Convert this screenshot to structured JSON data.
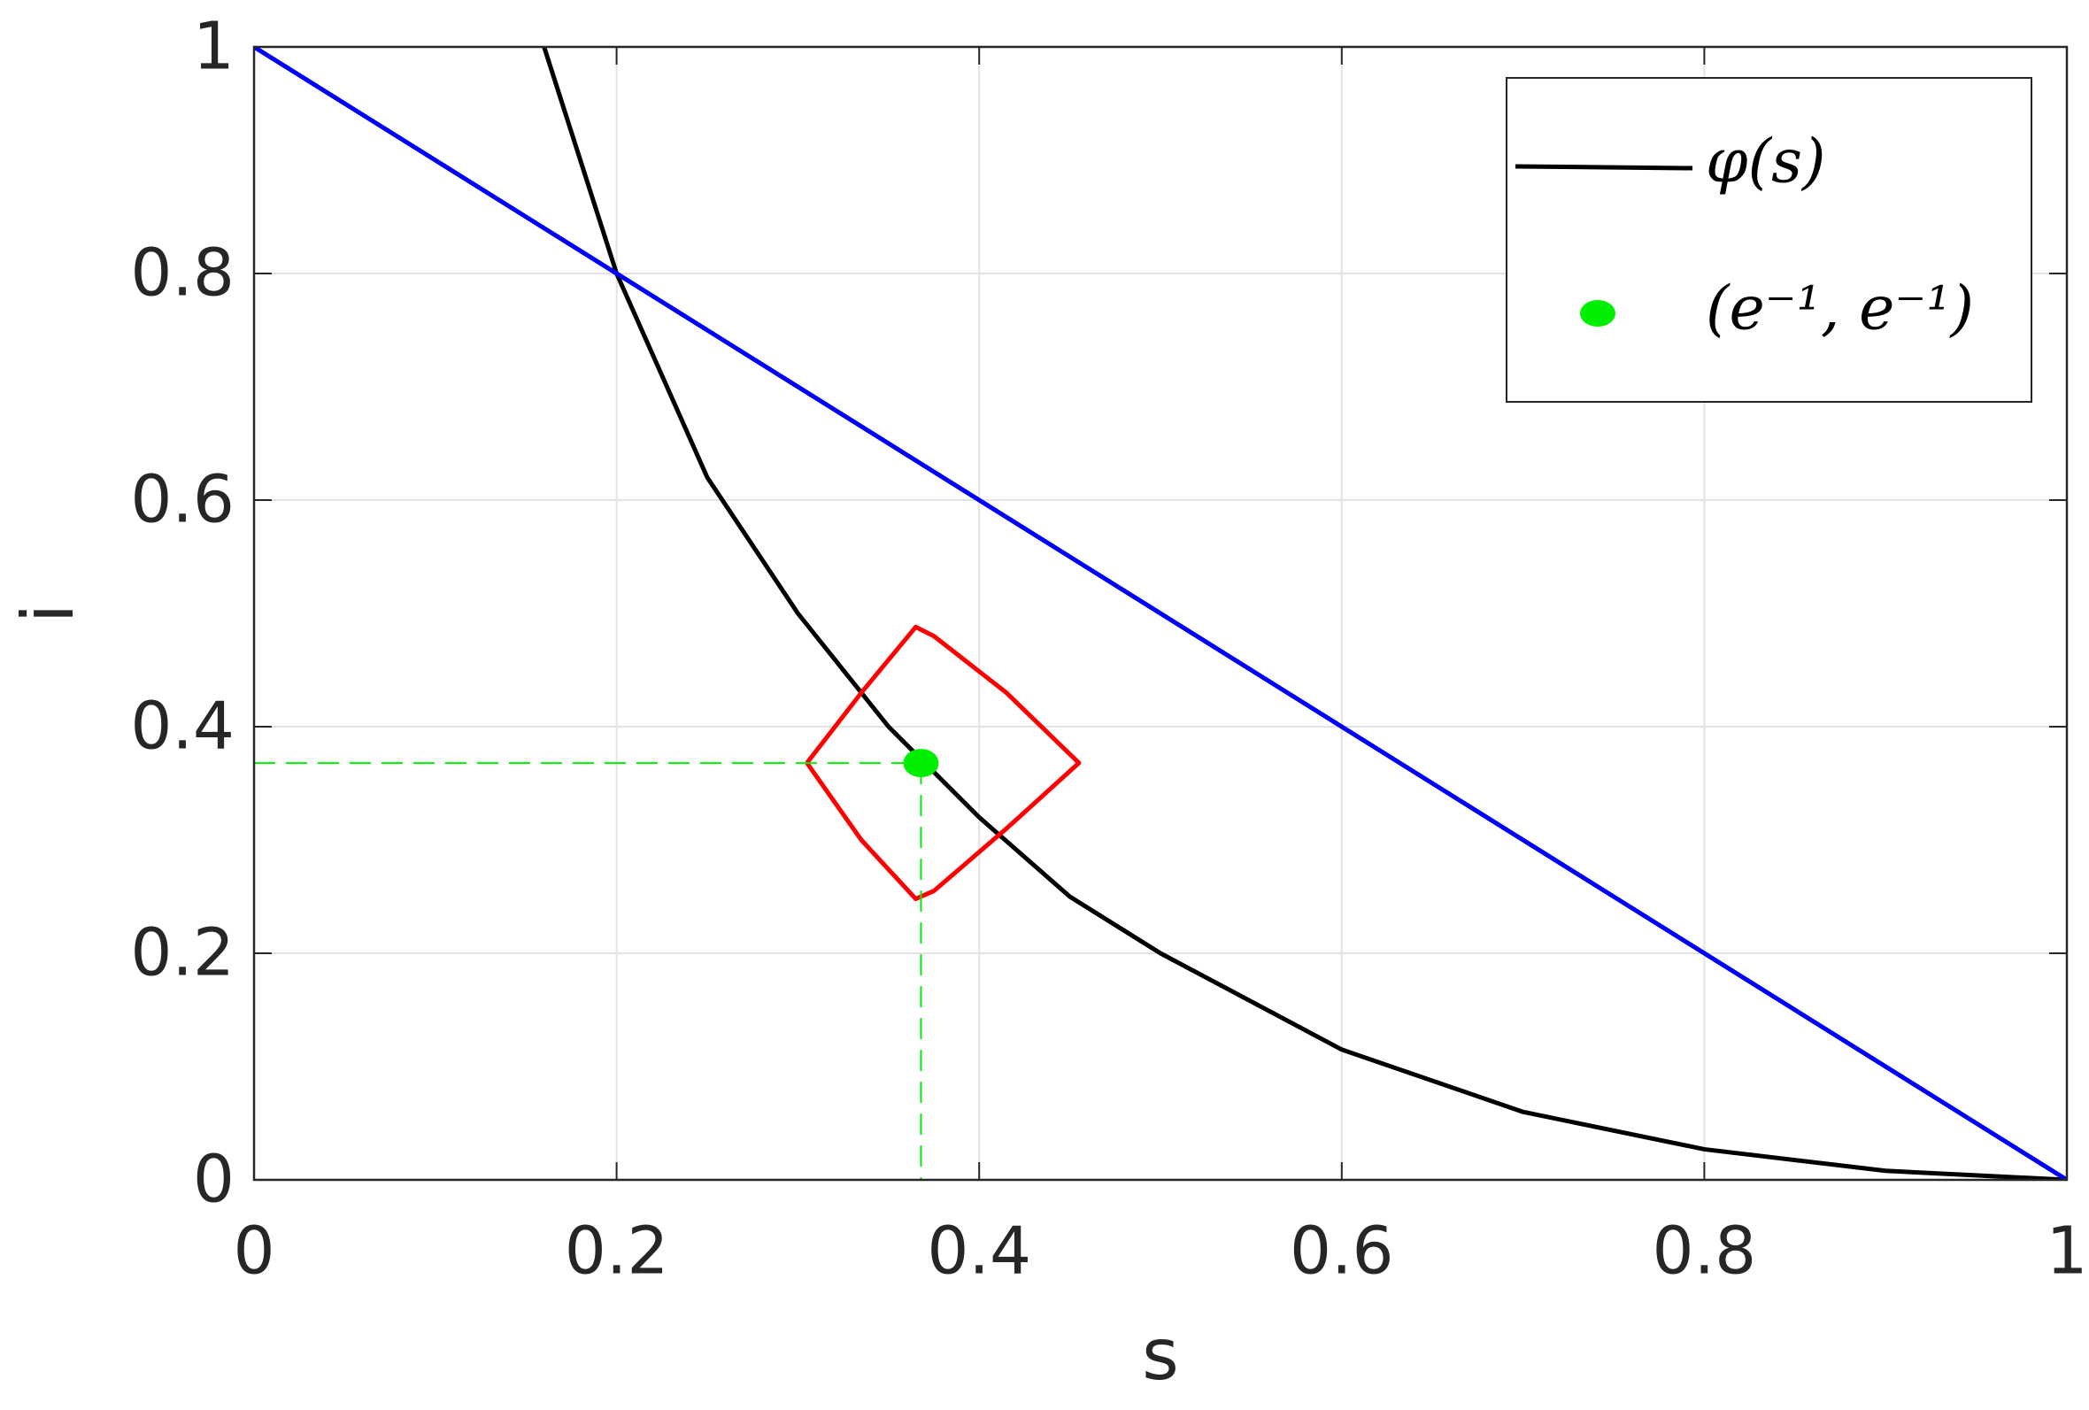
{
  "chart_data": {
    "type": "line",
    "xlabel": "s",
    "ylabel": "i",
    "xlim": [
      0,
      1
    ],
    "ylim": [
      0,
      1
    ],
    "xticks": [
      0,
      0.2,
      0.4,
      0.6,
      0.8,
      1
    ],
    "yticks": [
      0,
      0.2,
      0.4,
      0.6,
      0.8,
      1
    ],
    "grid": true,
    "legend": "upper right",
    "series": [
      {
        "name": "φ(s)",
        "color": "#000000",
        "mode": "line",
        "x": [
          0.16,
          0.2,
          0.25,
          0.3,
          0.35,
          0.4,
          0.45,
          0.5,
          0.6,
          0.7,
          0.8,
          0.9,
          1
        ],
        "values": [
          1,
          0.8,
          0.62,
          0.5,
          0.4,
          0.32,
          0.25,
          0.2,
          0.115,
          0.06,
          0.027,
          0.008,
          0
        ]
      },
      {
        "color": "#0000ff",
        "mode": "line",
        "x": [
          0,
          1
        ],
        "values": [
          1,
          0
        ]
      },
      {
        "color": "#ff0000",
        "mode": "line",
        "x": [
          0.305,
          0.335,
          0.365,
          0.375,
          0.415,
          0.455,
          0.415,
          0.375,
          0.365,
          0.335,
          0.305
        ],
        "values": [
          0.368,
          0.43,
          0.488,
          0.48,
          0.43,
          0.368,
          0.31,
          0.255,
          0.248,
          0.3,
          0.368
        ]
      },
      {
        "name": "(e⁻¹, e⁻¹)",
        "color": "#00ee00",
        "mode": "markers",
        "guides": true,
        "x": [
          0.3679
        ],
        "values": [
          0.3679
        ]
      }
    ]
  }
}
